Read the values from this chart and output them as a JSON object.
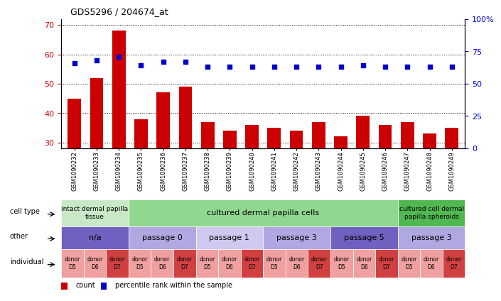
{
  "title": "GDS5296 / 204674_at",
  "samples": [
    "GSM1090232",
    "GSM1090233",
    "GSM1090234",
    "GSM1090235",
    "GSM1090236",
    "GSM1090237",
    "GSM1090238",
    "GSM1090239",
    "GSM1090240",
    "GSM1090241",
    "GSM1090242",
    "GSM1090243",
    "GSM1090244",
    "GSM1090245",
    "GSM1090246",
    "GSM1090247",
    "GSM1090248",
    "GSM1090249"
  ],
  "counts": [
    45,
    52,
    68,
    38,
    47,
    49,
    37,
    34,
    36,
    35,
    34,
    37,
    32,
    39,
    36,
    37,
    33,
    35
  ],
  "percentiles": [
    66,
    68,
    71,
    64,
    67,
    67,
    63,
    63,
    63,
    63,
    63,
    63,
    63,
    64,
    63,
    63,
    63,
    63
  ],
  "ylim_left": [
    28,
    72
  ],
  "ylim_right": [
    0,
    100
  ],
  "bar_color": "#cc0000",
  "dot_color": "#0000cc",
  "cell_type_row": {
    "groups": [
      {
        "label": "intact dermal papilla\ntissue",
        "start": 0,
        "end": 3,
        "color": "#c8e8c8",
        "fontsize": 6.5
      },
      {
        "label": "cultured dermal papilla cells",
        "start": 3,
        "end": 15,
        "color": "#90d890",
        "fontsize": 8
      },
      {
        "label": "cultured cell dermal\npapilla spheroids",
        "start": 15,
        "end": 18,
        "color": "#50b850",
        "fontsize": 6.5
      }
    ]
  },
  "other_row": {
    "groups": [
      {
        "label": "n/a",
        "start": 0,
        "end": 3,
        "color": "#7060c0",
        "fontsize": 8
      },
      {
        "label": "passage 0",
        "start": 3,
        "end": 6,
        "color": "#b0a8e0",
        "fontsize": 8
      },
      {
        "label": "passage 1",
        "start": 6,
        "end": 9,
        "color": "#d0c8f0",
        "fontsize": 8
      },
      {
        "label": "passage 3",
        "start": 9,
        "end": 12,
        "color": "#b0a8e0",
        "fontsize": 8
      },
      {
        "label": "passage 5",
        "start": 12,
        "end": 15,
        "color": "#7060c0",
        "fontsize": 8
      },
      {
        "label": "passage 3",
        "start": 15,
        "end": 18,
        "color": "#b0a8e0",
        "fontsize": 8
      }
    ]
  },
  "individual_row": {
    "items": [
      {
        "label": "donor\nD5",
        "color": "#f0a0a0"
      },
      {
        "label": "donor\nD6",
        "color": "#f0a0a0"
      },
      {
        "label": "donor\nD7",
        "color": "#d04040"
      },
      {
        "label": "donor\nD5",
        "color": "#f0a0a0"
      },
      {
        "label": "donor\nD6",
        "color": "#f0a0a0"
      },
      {
        "label": "donor\nD7",
        "color": "#d04040"
      },
      {
        "label": "donor\nD5",
        "color": "#f0a0a0"
      },
      {
        "label": "donor\nD6",
        "color": "#f0a0a0"
      },
      {
        "label": "donor\nD7",
        "color": "#d04040"
      },
      {
        "label": "donor\nD5",
        "color": "#f0a0a0"
      },
      {
        "label": "donor\nD6",
        "color": "#f0a0a0"
      },
      {
        "label": "donor\nD7",
        "color": "#d04040"
      },
      {
        "label": "donor\nD5",
        "color": "#f0a0a0"
      },
      {
        "label": "donor\nD6",
        "color": "#f0a0a0"
      },
      {
        "label": "donor\nD7",
        "color": "#d04040"
      },
      {
        "label": "donor\nD5",
        "color": "#f0a0a0"
      },
      {
        "label": "donor\nD6",
        "color": "#f0a0a0"
      },
      {
        "label": "donor\nD7",
        "color": "#d04040"
      }
    ]
  },
  "tick_yticks_left": [
    30,
    40,
    50,
    60,
    70
  ],
  "tick_yticks_right": [
    0,
    25,
    50,
    75,
    100
  ]
}
